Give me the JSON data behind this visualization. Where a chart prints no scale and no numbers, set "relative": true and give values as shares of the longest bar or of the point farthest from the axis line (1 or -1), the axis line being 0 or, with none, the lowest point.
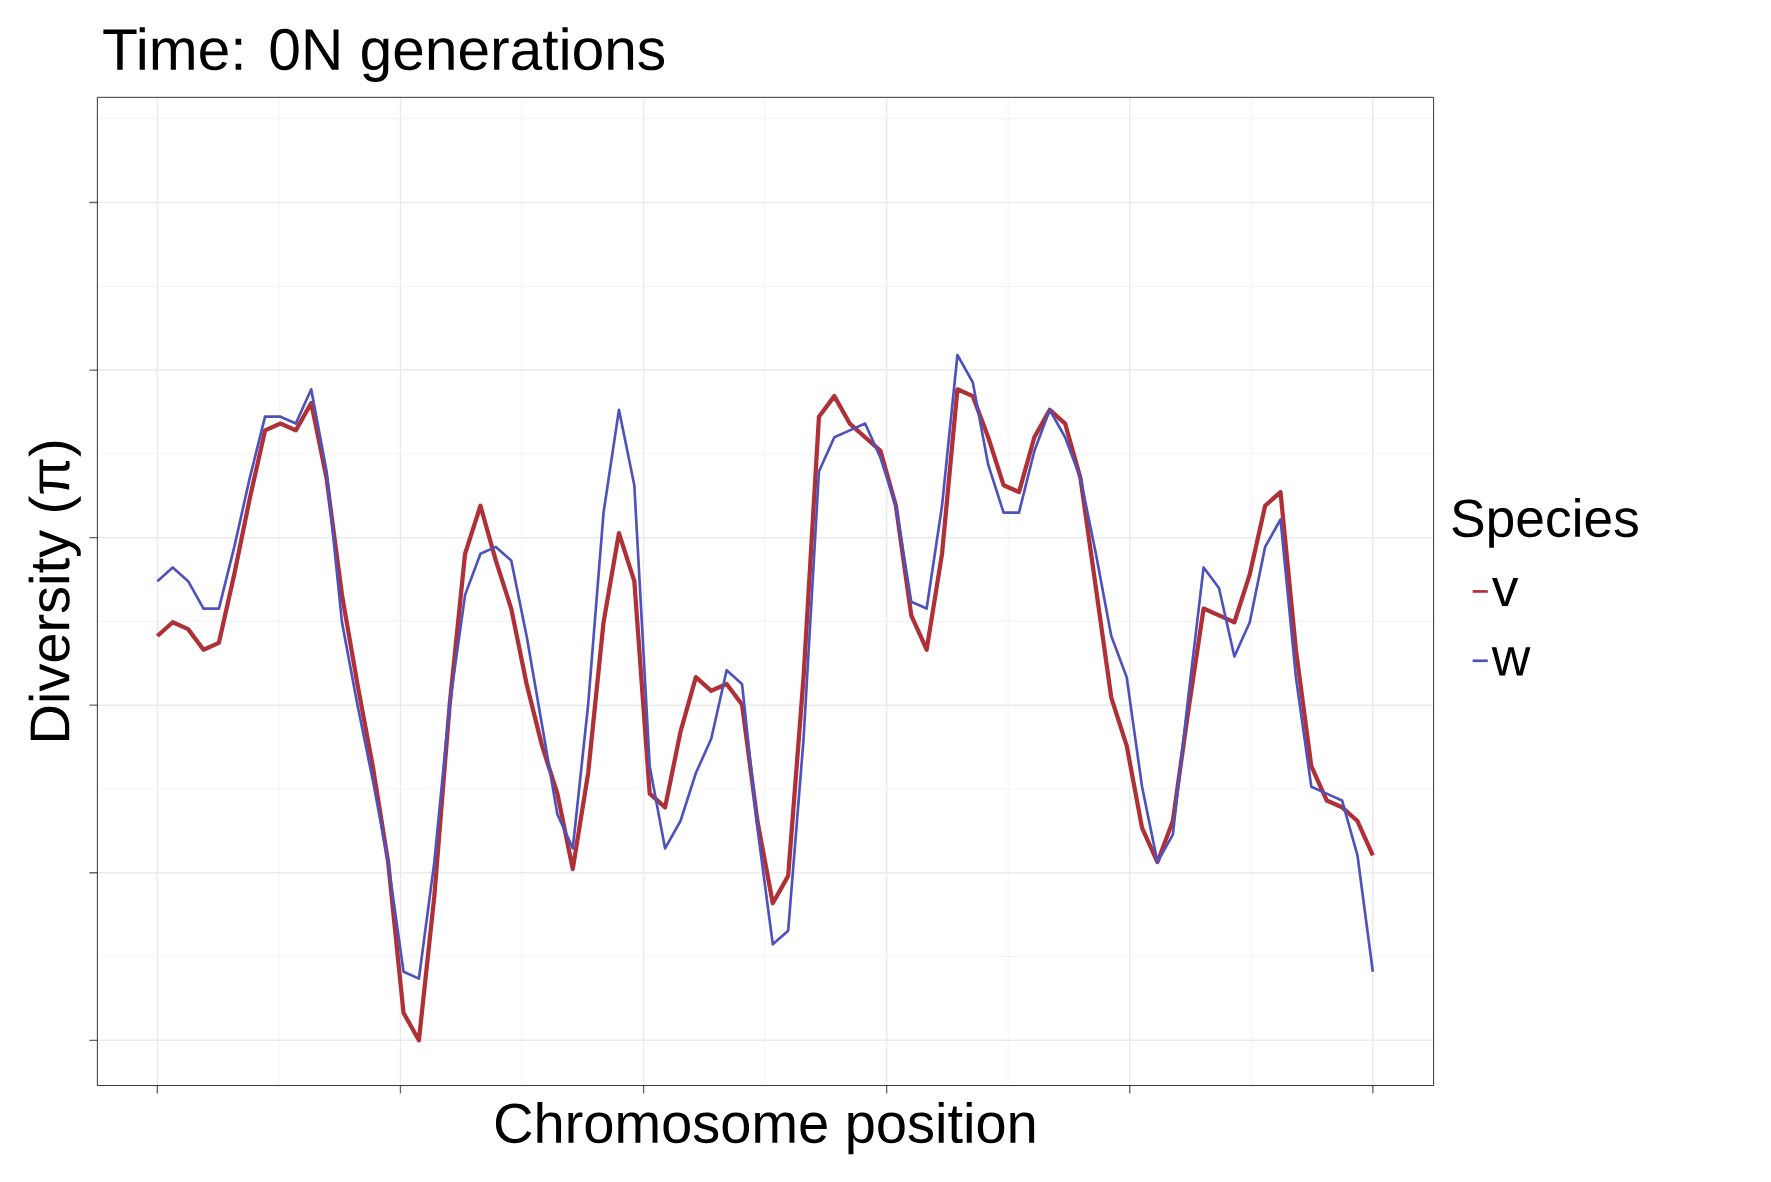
{
  "chart_data": {
    "type": "line",
    "title": "Time: 0N generations",
    "xlabel": "Chromosome position",
    "ylabel": "Diversity (π)",
    "legend_title": "Species",
    "legend": "right",
    "grid": true,
    "relative": true,
    "tick_labels": false,
    "categories": [
      null,
      null,
      null,
      null,
      null,
      null,
      null,
      null,
      null,
      null,
      null,
      null,
      null,
      null,
      null,
      null,
      null,
      null,
      null,
      null,
      null,
      null,
      null,
      null,
      null,
      null,
      null,
      null,
      null,
      null,
      null,
      null,
      null,
      null,
      null,
      null,
      null,
      null,
      null,
      null,
      null,
      null,
      null,
      null,
      null,
      null,
      null,
      null,
      null,
      null,
      null,
      null,
      null,
      null,
      null,
      null,
      null,
      null,
      null,
      null,
      null,
      null,
      null,
      null,
      null,
      null,
      null,
      null,
      null,
      null,
      null,
      null,
      null,
      null,
      null,
      null,
      null,
      null,
      null,
      null
    ],
    "series": [
      {
        "name": "v",
        "color": "#b03038",
        "values": [
          0.59,
          0.61,
          0.6,
          0.57,
          0.58,
          0.68,
          0.79,
          0.89,
          0.9,
          0.89,
          0.93,
          0.82,
          0.65,
          0.52,
          0.4,
          0.26,
          0.04,
          0,
          0.21,
          0.49,
          0.71,
          0.78,
          0.7,
          0.63,
          0.52,
          0.43,
          0.36,
          0.25,
          0.39,
          0.61,
          0.74,
          0.67,
          0.36,
          0.34,
          0.45,
          0.53,
          0.51,
          0.52,
          0.49,
          0.32,
          0.2,
          0.24,
          0.53,
          0.91,
          0.94,
          0.9,
          0.88,
          0.86,
          0.78,
          0.62,
          0.57,
          0.71,
          0.95,
          0.94,
          0.88,
          0.81,
          0.8,
          0.88,
          0.92,
          0.9,
          0.82,
          0.66,
          0.5,
          0.43,
          0.31,
          0.26,
          0.32,
          0.48,
          0.63,
          0.62,
          0.61,
          0.68,
          0.78,
          0.8,
          0.57,
          0.4,
          0.35,
          0.34,
          0.32,
          0.27
        ]
      },
      {
        "name": "w",
        "color": "#4e52bd",
        "values": [
          0.67,
          0.69,
          0.67,
          0.63,
          0.63,
          0.72,
          0.82,
          0.91,
          0.91,
          0.9,
          0.95,
          0.83,
          0.61,
          0.49,
          0.38,
          0.26,
          0.1,
          0.09,
          0.26,
          0.49,
          0.65,
          0.71,
          0.72,
          0.7,
          0.59,
          0.46,
          0.33,
          0.28,
          0.49,
          0.77,
          0.92,
          0.81,
          0.4,
          0.28,
          0.32,
          0.39,
          0.44,
          0.54,
          0.52,
          0.31,
          0.14,
          0.16,
          0.44,
          0.83,
          0.88,
          0.89,
          0.9,
          0.85,
          0.78,
          0.64,
          0.63,
          0.78,
          1,
          0.96,
          0.84,
          0.77,
          0.77,
          0.86,
          0.92,
          0.88,
          0.82,
          0.71,
          0.59,
          0.53,
          0.37,
          0.26,
          0.3,
          0.5,
          0.69,
          0.66,
          0.56,
          0.61,
          0.72,
          0.76,
          0.53,
          0.37,
          0.36,
          0.35,
          0.27,
          0.1
        ]
      }
    ]
  }
}
